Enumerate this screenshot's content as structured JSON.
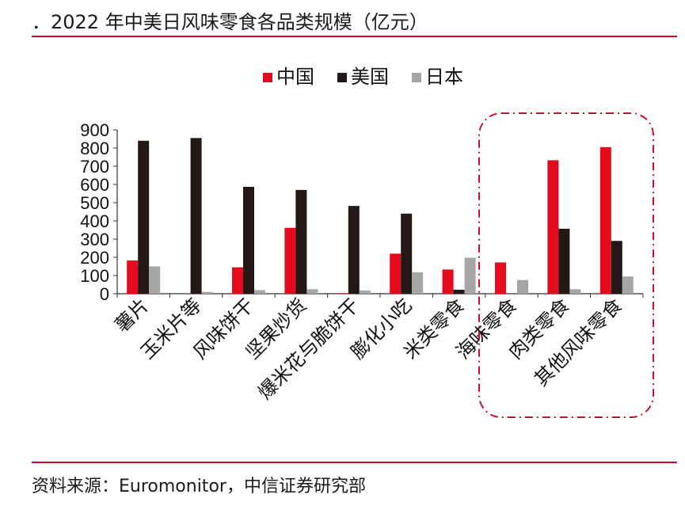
{
  "header": {
    "title": "．2022 年中美日风味零食各品类规模（亿元）"
  },
  "footer": {
    "source": "资料来源：Euromonitor，中信证券研究部"
  },
  "colors": {
    "accent": "#c8102e",
    "china": "#e30b1c",
    "usa": "#231815",
    "japan": "#a6a6a6",
    "highlight_box": "#c8102e"
  },
  "chart_data": {
    "type": "bar",
    "categories": [
      "薯片",
      "玉米片等",
      "风味饼干",
      "坚果炒货",
      "爆米花与脆饼干",
      "膨化小吃",
      "米类零食",
      "海味零食",
      "肉类零食",
      "其他风味零食"
    ],
    "series": [
      {
        "name": "中国",
        "values": [
          183,
          0,
          145,
          362,
          3,
          220,
          133,
          172,
          733,
          805
        ]
      },
      {
        "name": "美国",
        "values": [
          840,
          855,
          587,
          570,
          482,
          440,
          22,
          0,
          357,
          290
        ]
      },
      {
        "name": "日本",
        "values": [
          150,
          10,
          20,
          25,
          18,
          118,
          198,
          75,
          25,
          95
        ]
      }
    ],
    "ylim": [
      0,
      900
    ],
    "yticks": [
      0,
      100,
      200,
      300,
      400,
      500,
      600,
      700,
      800,
      900
    ],
    "legend_position": "top-center",
    "grid": false,
    "highlight": "last three categories enclosed in a red dash-dot rounded box"
  }
}
